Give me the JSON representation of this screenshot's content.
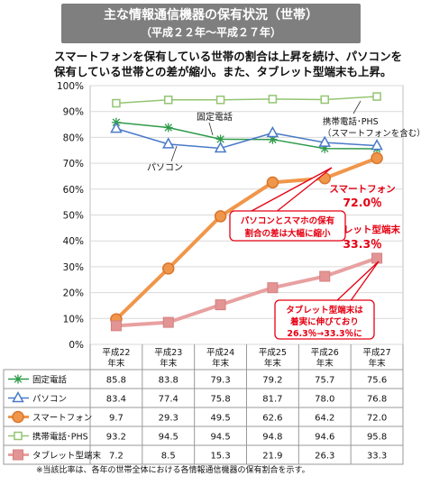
{
  "title": "主な情報通信機器の保有状況（世帯）",
  "subtitle": "（平成２２年～平成２７年）",
  "lead": [
    "スマートフォンを保有している世帯の割合は上昇を続け、パソコンを",
    "保有している世帯との差が縮小。また、タブレット型端末も上昇。"
  ],
  "chart_data": {
    "type": "line",
    "categories": [
      [
        "平成22",
        "年末"
      ],
      [
        "平成23",
        "年末"
      ],
      [
        "平成24",
        "年末"
      ],
      [
        "平成25",
        "年末"
      ],
      [
        "平成26",
        "年末"
      ],
      [
        "平成27",
        "年末"
      ]
    ],
    "ylim": [
      0,
      100
    ],
    "yticks": [
      "0%",
      "10%",
      "20%",
      "30%",
      "40%",
      "50%",
      "60%",
      "70%",
      "80%",
      "90%",
      "100%"
    ],
    "series": [
      {
        "name": "固定電話",
        "values": [
          85.8,
          83.8,
          79.3,
          79.2,
          75.7,
          75.6
        ],
        "color": "#2e9b4a",
        "marker": "star",
        "width": 1.5
      },
      {
        "name": "パソコン",
        "values": [
          83.4,
          77.4,
          75.8,
          81.7,
          78.0,
          76.8
        ],
        "color": "#4a7ac8",
        "marker": "triangle",
        "width": 1.5
      },
      {
        "name": "スマートフォン",
        "values": [
          9.7,
          29.3,
          49.5,
          62.6,
          64.2,
          72.0
        ],
        "color": "#f0964a",
        "marker": "circle",
        "width": 4
      },
      {
        "name": "携帯電話･PHS",
        "values": [
          93.2,
          94.5,
          94.5,
          94.8,
          94.6,
          95.8
        ],
        "color": "#93c572",
        "marker": "square-open",
        "width": 1.5
      },
      {
        "name": "タブレット型端末",
        "values": [
          7.2,
          8.5,
          15.3,
          21.9,
          26.3,
          33.3
        ],
        "color": "#e8a0a0",
        "marker": "square",
        "width": 4
      }
    ],
    "table_values": [
      [
        "85.8",
        "83.8",
        "79.3",
        "79.2",
        "75.7",
        "75.6"
      ],
      [
        "83.4",
        "77.4",
        "75.8",
        "81.7",
        "78.0",
        "76.8"
      ],
      [
        "9.7",
        "29.3",
        "49.5",
        "62.6",
        "64.2",
        "72.0"
      ],
      [
        "93.2",
        "94.5",
        "94.5",
        "94.8",
        "94.6",
        "95.8"
      ],
      [
        "7.2",
        "8.5",
        "15.3",
        "21.9",
        "26.3",
        "33.3"
      ]
    ],
    "annotations": {
      "fixed": "固定電話",
      "pc": "パソコン",
      "mobile": [
        "携帯電話･PHS",
        "（スマートフォンを含む）"
      ],
      "smartphone": [
        "スマートフォン",
        "72.0％"
      ],
      "tablet": [
        "タブレット型端末",
        "33.3％"
      ],
      "gap_box": [
        "パソコンとスマホの保有",
        "割合の差は大幅に縮小"
      ],
      "tablet_box": [
        "タブレット型端末は",
        "着実に伸びており",
        "26.3％→33.3％に"
      ]
    },
    "accent_color": "#e60012"
  },
  "footnote": "※当該比率は、各年の世帯全体における各情報通信機器の保有割合を示す。"
}
